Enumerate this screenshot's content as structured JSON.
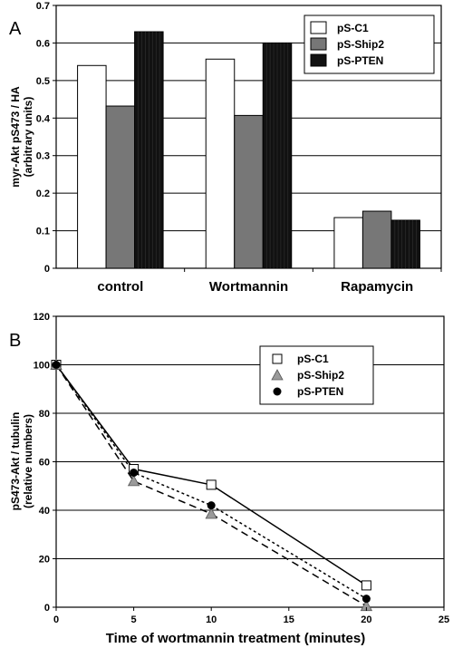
{
  "chart_data": [
    {
      "type": "bar",
      "panel_label": "A",
      "categories": [
        "control",
        "Wortmannin",
        "Rapamycin"
      ],
      "series": [
        {
          "name": "pS-C1",
          "values": [
            0.54,
            0.557,
            0.135
          ],
          "color": "#ffffff"
        },
        {
          "name": "pS-Ship2",
          "values": [
            0.432,
            0.407,
            0.152
          ],
          "color": "#777777"
        },
        {
          "name": "pS-PTEN",
          "values": [
            0.63,
            0.6,
            0.128
          ],
          "color": "#111111"
        }
      ],
      "ylabel_lines": [
        "myr-Akt pS473 / HA",
        "(arbitrary units)"
      ],
      "ylim": [
        0,
        0.7
      ],
      "yticks": [
        "0",
        "0.1",
        "0.2",
        "0.3",
        "0.4",
        "0.5",
        "0.6",
        "0.7"
      ],
      "grid": true,
      "legend": "top-right"
    },
    {
      "type": "line",
      "panel_label": "B",
      "series": [
        {
          "name": "pS-C1",
          "x": [
            0,
            5,
            10,
            20
          ],
          "y": [
            100,
            57,
            50.5,
            9
          ],
          "marker": "square",
          "line": "solid"
        },
        {
          "name": "pS-Ship2",
          "x": [
            0,
            5,
            10,
            20
          ],
          "y": [
            100,
            52,
            38.5,
            0.5
          ],
          "marker": "triangle",
          "line": "dashed"
        },
        {
          "name": "pS-PTEN",
          "x": [
            0,
            5,
            10,
            20
          ],
          "y": [
            100,
            55.5,
            42,
            3.5
          ],
          "marker": "circle",
          "line": "dotted"
        }
      ],
      "xlabel": "Time of wortmannin treatment (minutes)",
      "ylabel_lines": [
        "pS473-Akt / tubulin",
        "(relative numbers)"
      ],
      "xlim": [
        0,
        25
      ],
      "ylim": [
        0,
        120
      ],
      "xticks": [
        "0",
        "5",
        "10",
        "15",
        "20",
        "25"
      ],
      "yticks": [
        "0",
        "20",
        "40",
        "60",
        "80",
        "100",
        "120"
      ],
      "grid": true,
      "legend": "top-right"
    }
  ]
}
